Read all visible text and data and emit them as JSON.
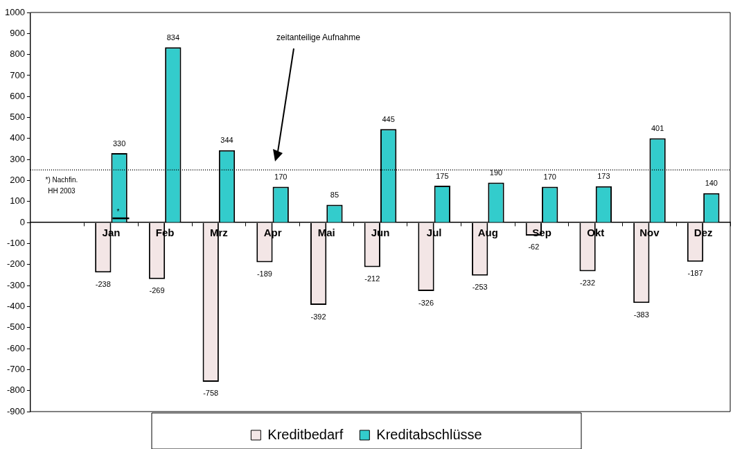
{
  "chart_data": {
    "type": "bar",
    "categories": [
      null,
      "Jan",
      "Feb",
      "Mrz",
      "Apr",
      "Mai",
      "Jun",
      "Jul",
      "Aug",
      "Sep",
      "Okt",
      "Nov",
      "Dez"
    ],
    "series": [
      {
        "name": "Kreditbedarf",
        "color": "#f3e6e6",
        "values": [
          null,
          -238,
          -269,
          -758,
          -189,
          -392,
          -212,
          -326,
          -253,
          -62,
          -232,
          -383,
          -187
        ]
      },
      {
        "name": "Kreditabschlüsse",
        "color": "#33cccc",
        "values": [
          null,
          330,
          834,
          344,
          170,
          85,
          445,
          175,
          190,
          170,
          173,
          401,
          140
        ]
      }
    ],
    "ylim": [
      -900,
      1000
    ],
    "yticks": [
      -900,
      -800,
      -700,
      -600,
      -500,
      -400,
      -300,
      -200,
      -100,
      0,
      100,
      200,
      300,
      400,
      500,
      600,
      700,
      800,
      900,
      1000
    ],
    "grid": false,
    "legend": "bottom",
    "data_labels": true,
    "ref_lines": [
      {
        "axis": "y",
        "value": 250,
        "line_style": "dotted",
        "color": "#000000"
      }
    ],
    "annotations": [
      "*) Nachfin. HH 2003",
      {
        "text": "*",
        "x": "Jan",
        "y": 20
      },
      "zeitanteilige Aufnahme"
    ]
  }
}
